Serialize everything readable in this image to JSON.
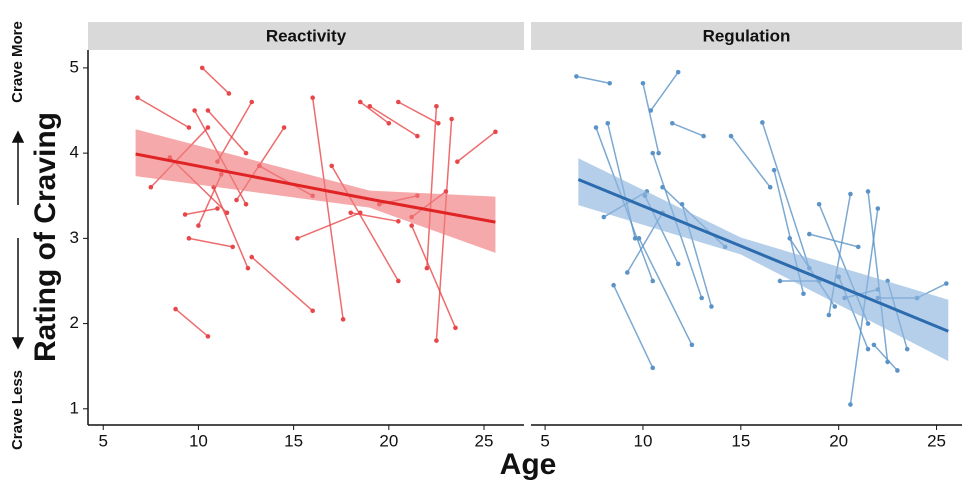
{
  "chart_data": [
    {
      "type": "line",
      "title": "Reactivity",
      "color": "#e8474a",
      "fit_color": "#e02426",
      "band_color": "#f17b7c",
      "ylabel": "Rating of Craving",
      "xlabel": "Age",
      "annotations": [
        "Crave More",
        "Crave Less"
      ],
      "xlim": [
        4.2,
        27.1
      ],
      "xticks": [
        5,
        10,
        15,
        20,
        25
      ],
      "ylim": [
        0.81,
        5.21
      ],
      "yticks": [
        1,
        2,
        3,
        4,
        5
      ],
      "segments": [
        {
          "x": [
            6.8,
            9.5
          ],
          "y": [
            4.65,
            4.3
          ]
        },
        {
          "x": [
            10.2,
            11.6
          ],
          "y": [
            5.0,
            4.7
          ]
        },
        {
          "x": [
            7.5,
            10.5
          ],
          "y": [
            3.6,
            4.3
          ]
        },
        {
          "x": [
            8.8,
            10.5
          ],
          "y": [
            2.17,
            1.85
          ]
        },
        {
          "x": [
            8.5,
            11.5
          ],
          "y": [
            3.95,
            3.3
          ]
        },
        {
          "x": [
            9.3,
            11.0
          ],
          "y": [
            3.28,
            3.35
          ]
        },
        {
          "x": [
            9.8,
            12.5
          ],
          "y": [
            4.5,
            3.4
          ]
        },
        {
          "x": [
            10.0,
            11.2
          ],
          "y": [
            3.15,
            3.75
          ]
        },
        {
          "x": [
            11.0,
            12.8
          ],
          "y": [
            3.9,
            4.6
          ]
        },
        {
          "x": [
            12.0,
            14.5
          ],
          "y": [
            3.45,
            4.3
          ]
        },
        {
          "x": [
            12.8,
            16.0
          ],
          "y": [
            2.78,
            2.15
          ]
        },
        {
          "x": [
            12.5,
            10.5
          ],
          "y": [
            4.0,
            4.5
          ]
        },
        {
          "x": [
            16.0,
            17.6
          ],
          "y": [
            4.65,
            2.05
          ]
        },
        {
          "x": [
            15.2,
            18.5
          ],
          "y": [
            3.0,
            3.3
          ]
        },
        {
          "x": [
            17.0,
            20.5
          ],
          "y": [
            3.85,
            2.5
          ]
        },
        {
          "x": [
            18.5,
            20.0
          ],
          "y": [
            4.6,
            4.35
          ]
        },
        {
          "x": [
            19.0,
            21.5
          ],
          "y": [
            4.55,
            4.2
          ]
        },
        {
          "x": [
            20.5,
            22.6
          ],
          "y": [
            4.6,
            4.35
          ]
        },
        {
          "x": [
            19.5,
            21.5
          ],
          "y": [
            3.4,
            3.5
          ]
        },
        {
          "x": [
            21.2,
            23.0
          ],
          "y": [
            3.25,
            3.55
          ]
        },
        {
          "x": [
            22.5,
            22.0
          ],
          "y": [
            4.55,
            2.65
          ]
        },
        {
          "x": [
            23.6,
            25.6
          ],
          "y": [
            3.9,
            4.25
          ]
        },
        {
          "x": [
            23.3,
            22.5
          ],
          "y": [
            4.4,
            1.8
          ]
        },
        {
          "x": [
            21.2,
            23.5
          ],
          "y": [
            3.15,
            1.95
          ]
        },
        {
          "x": [
            18.0,
            20.5
          ],
          "y": [
            3.3,
            3.2
          ]
        },
        {
          "x": [
            13.2,
            16.0
          ],
          "y": [
            3.85,
            3.5
          ]
        },
        {
          "x": [
            10.8,
            12.6
          ],
          "y": [
            3.6,
            2.65
          ]
        },
        {
          "x": [
            9.5,
            11.8
          ],
          "y": [
            3.0,
            2.9
          ]
        }
      ],
      "fit": {
        "x": [
          6.7,
          19.0,
          25.6
        ],
        "y": [
          3.99,
          3.46,
          3.19
        ],
        "lower": [
          3.73,
          3.36,
          2.83
        ],
        "upper": [
          4.28,
          3.56,
          3.49
        ]
      }
    },
    {
      "type": "line",
      "title": "Regulation",
      "color": "#5b93c7",
      "fit_color": "#2c6cae",
      "band_color": "#8db6de",
      "xlim": [
        4.28,
        26.3
      ],
      "xticks": [
        5,
        10,
        15,
        20,
        25
      ],
      "ylim": [
        0.81,
        5.21
      ],
      "segments": [
        {
          "x": [
            6.6,
            8.3
          ],
          "y": [
            4.9,
            4.82
          ]
        },
        {
          "x": [
            10.0,
            10.8
          ],
          "y": [
            4.82,
            4.0
          ]
        },
        {
          "x": [
            10.4,
            11.8
          ],
          "y": [
            4.5,
            4.95
          ]
        },
        {
          "x": [
            11.5,
            13.1
          ],
          "y": [
            4.35,
            4.2
          ]
        },
        {
          "x": [
            7.6,
            10.5
          ],
          "y": [
            4.3,
            2.5
          ]
        },
        {
          "x": [
            8.2,
            9.6
          ],
          "y": [
            4.35,
            3.0
          ]
        },
        {
          "x": [
            8.0,
            10.2
          ],
          "y": [
            3.25,
            3.55
          ]
        },
        {
          "x": [
            8.5,
            10.5
          ],
          "y": [
            2.45,
            1.48
          ]
        },
        {
          "x": [
            9.2,
            11.0
          ],
          "y": [
            2.6,
            3.3
          ]
        },
        {
          "x": [
            10.1,
            11.8
          ],
          "y": [
            3.5,
            2.7
          ]
        },
        {
          "x": [
            9.8,
            12.5
          ],
          "y": [
            3.0,
            1.75
          ]
        },
        {
          "x": [
            10.5,
            13.0
          ],
          "y": [
            4.0,
            2.3
          ]
        },
        {
          "x": [
            11.0,
            14.2
          ],
          "y": [
            3.6,
            2.9
          ]
        },
        {
          "x": [
            12.0,
            13.5
          ],
          "y": [
            3.4,
            2.2
          ]
        },
        {
          "x": [
            14.5,
            16.5
          ],
          "y": [
            4.2,
            3.6
          ]
        },
        {
          "x": [
            16.1,
            18.5
          ],
          "y": [
            4.36,
            2.65
          ]
        },
        {
          "x": [
            16.7,
            18.2
          ],
          "y": [
            3.8,
            2.35
          ]
        },
        {
          "x": [
            17.0,
            19.0
          ],
          "y": [
            2.5,
            2.5
          ]
        },
        {
          "x": [
            17.5,
            19.8
          ],
          "y": [
            3.0,
            2.2
          ]
        },
        {
          "x": [
            19.0,
            21.5
          ],
          "y": [
            3.4,
            2.0
          ]
        },
        {
          "x": [
            20.6,
            19.5
          ],
          "y": [
            3.52,
            2.1
          ]
        },
        {
          "x": [
            20.0,
            21.5
          ],
          "y": [
            2.55,
            1.7
          ]
        },
        {
          "x": [
            20.3,
            22.0
          ],
          "y": [
            2.3,
            2.4
          ]
        },
        {
          "x": [
            21.5,
            22.5
          ],
          "y": [
            3.55,
            1.55
          ]
        },
        {
          "x": [
            22.0,
            20.6
          ],
          "y": [
            3.35,
            1.05
          ]
        },
        {
          "x": [
            22.5,
            23.5
          ],
          "y": [
            2.5,
            1.7
          ]
        },
        {
          "x": [
            22.0,
            24.0
          ],
          "y": [
            2.3,
            2.3
          ]
        },
        {
          "x": [
            24.0,
            25.5
          ],
          "y": [
            2.3,
            2.47
          ]
        },
        {
          "x": [
            21.8,
            23.0
          ],
          "y": [
            1.75,
            1.45
          ]
        },
        {
          "x": [
            18.5,
            21.0
          ],
          "y": [
            3.05,
            2.9
          ]
        }
      ],
      "fit": {
        "x": [
          6.7,
          15.0,
          25.6
        ],
        "y": [
          3.69,
          2.91,
          1.91
        ],
        "lower": [
          3.39,
          2.81,
          1.56
        ],
        "upper": [
          3.94,
          3.01,
          2.28
        ]
      }
    }
  ]
}
